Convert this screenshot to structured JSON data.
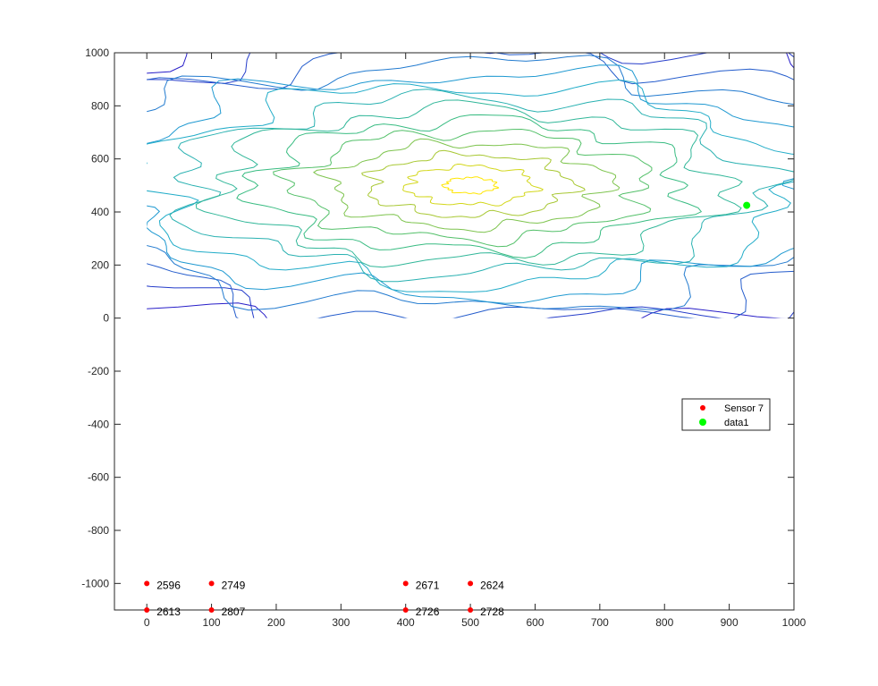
{
  "chart_data": {
    "type": "contour",
    "title": "",
    "xlabel": "",
    "ylabel": "",
    "xlim": [
      -50,
      1000
    ],
    "ylim": [
      -1100,
      1000
    ],
    "xticks": [
      0,
      100,
      200,
      300,
      400,
      500,
      600,
      700,
      800,
      900,
      1000
    ],
    "yticks": [
      -1000,
      -800,
      -600,
      -400,
      -200,
      0,
      200,
      400,
      600,
      800,
      1000
    ],
    "grid": false,
    "legend_position": "east",
    "colors": {
      "sensor": "#ff0000",
      "data1": "#00ff00",
      "contour_low": "#1a1ad6",
      "contour_mid": "#1fb3c4",
      "contour_high": "#ffe600"
    },
    "contour": {
      "x_range": [
        0,
        1000
      ],
      "y_range": [
        0,
        1000
      ],
      "peak_center": [
        500,
        500
      ],
      "levels": 14
    },
    "sensors": [
      {
        "x": 0,
        "y": -1000,
        "label": "2596"
      },
      {
        "x": 100,
        "y": -1000,
        "label": "2749"
      },
      {
        "x": 400,
        "y": -1000,
        "label": "2671"
      },
      {
        "x": 500,
        "y": -1000,
        "label": "2624"
      },
      {
        "x": 0,
        "y": -1100,
        "label": "2613"
      },
      {
        "x": 100,
        "y": -1100,
        "label": "2807"
      },
      {
        "x": 400,
        "y": -1100,
        "label": "2726"
      },
      {
        "x": 500,
        "y": -1100,
        "label": "2728"
      }
    ],
    "series": [
      {
        "name": "Sensor 7",
        "color": "#ff0000",
        "marker": "dot"
      },
      {
        "name": "data1",
        "color": "#00ff00",
        "marker": "dot",
        "points": [
          {
            "x": 927,
            "y": 425
          }
        ]
      }
    ]
  }
}
